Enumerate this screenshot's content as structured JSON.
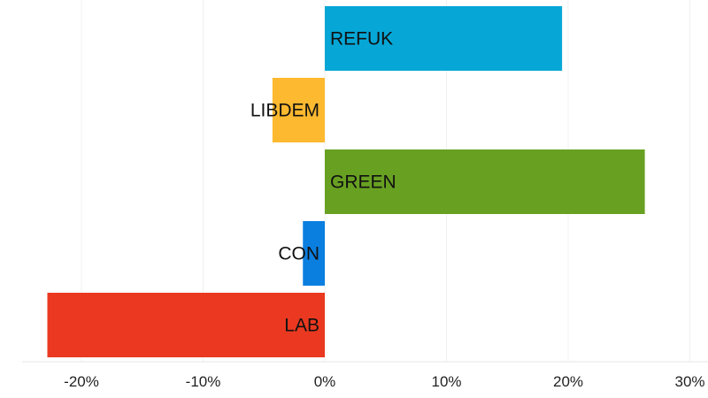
{
  "chart_data": {
    "type": "bar",
    "orientation": "horizontal",
    "categories": [
      "REFUK",
      "LIBDEM",
      "GREEN",
      "CON",
      "LAB"
    ],
    "values": [
      19.5,
      -4.3,
      26.3,
      -1.8,
      -22.8
    ],
    "colors": [
      "#06a7d6",
      "#fdb92f",
      "#68a122",
      "#0a7fe0",
      "#ea3920"
    ],
    "xlim": [
      -25,
      30
    ],
    "xticks": [
      -20,
      -10,
      0,
      10,
      20,
      30
    ],
    "xtick_labels": [
      "-20%",
      "-10%",
      "0%",
      "10%",
      "20%",
      "30%"
    ],
    "grid": true,
    "legend": "none",
    "title": "",
    "xlabel": "",
    "ylabel": ""
  }
}
